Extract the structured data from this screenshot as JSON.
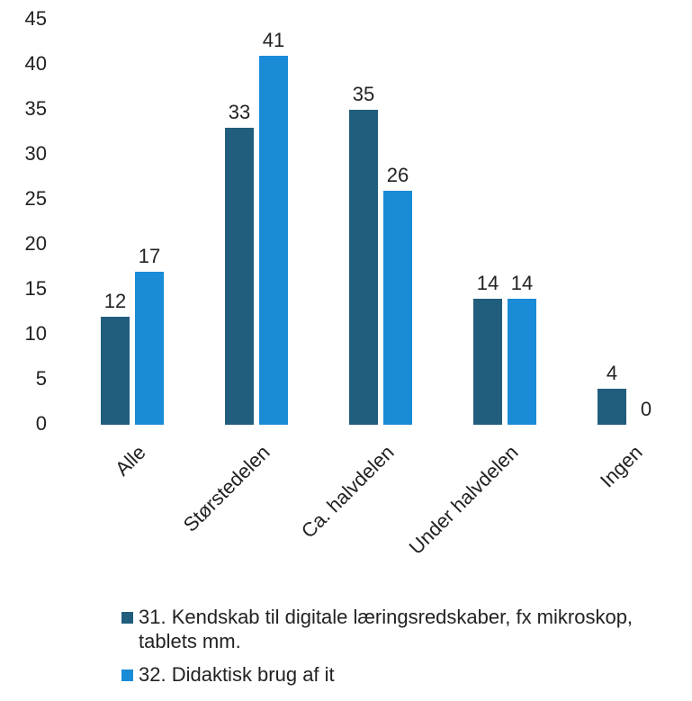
{
  "chart_data": {
    "type": "bar",
    "categories": [
      "Alle",
      "Størstedelen",
      "Ca. halvdelen",
      "Under halvdelen",
      "Ingen"
    ],
    "series": [
      {
        "name": "31. Kendskab til digitale læringsredskaber, fx mikroskop, tablets mm.",
        "color": "#215d7c",
        "values": [
          12,
          33,
          35,
          14,
          4
        ]
      },
      {
        "name": "32. Didaktisk brug af it",
        "color": "#1a8bd6",
        "values": [
          17,
          41,
          26,
          14,
          0
        ]
      }
    ],
    "ylim": [
      0,
      45
    ],
    "yticks": [
      0,
      5,
      10,
      15,
      20,
      25,
      30,
      35,
      40,
      45
    ],
    "grid": false
  }
}
